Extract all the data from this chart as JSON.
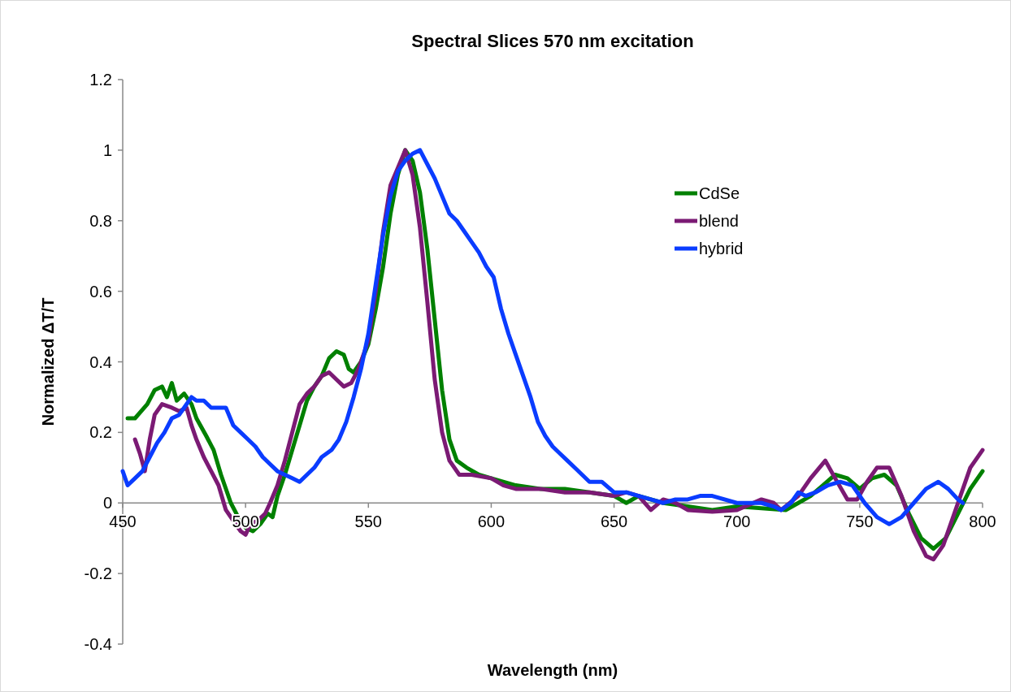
{
  "chart_data": {
    "type": "line",
    "title": "Spectral Slices 570 nm excitation",
    "xlabel": "Wavelength (nm)",
    "ylabel": "Normalized ΔT/T",
    "xlim": [
      450,
      800
    ],
    "xticks": [
      450,
      500,
      550,
      600,
      650,
      700,
      750,
      800
    ],
    "ylim": [
      -0.4,
      1.2
    ],
    "yticks": [
      -0.4,
      -0.2,
      0,
      0.2,
      0.4,
      0.6,
      0.8,
      1,
      1.2
    ],
    "grid": false,
    "legend": "right",
    "marker": "none",
    "line_style": "solid",
    "series": [
      {
        "name": "CdSe",
        "color": "#008000",
        "x": [
          452,
          455,
          460,
          463,
          466,
          468,
          470,
          472,
          475,
          478,
          480,
          484,
          487,
          490,
          494,
          497,
          500,
          503,
          506,
          509,
          511,
          513,
          516,
          519,
          522,
          525,
          528,
          531,
          534,
          537,
          540,
          542,
          544,
          547,
          550,
          553,
          556,
          559,
          562,
          565,
          568,
          571,
          574,
          577,
          580,
          583,
          586,
          590,
          595,
          600,
          610,
          620,
          630,
          640,
          650,
          655,
          660,
          670,
          680,
          690,
          700,
          710,
          720,
          725,
          730,
          735,
          740,
          745,
          750,
          755,
          760,
          765,
          770,
          775,
          780,
          785,
          790,
          795,
          800
        ],
        "values": [
          0.24,
          0.24,
          0.28,
          0.32,
          0.33,
          0.3,
          0.34,
          0.29,
          0.31,
          0.28,
          0.24,
          0.19,
          0.15,
          0.08,
          0,
          -0.04,
          -0.07,
          -0.08,
          -0.06,
          -0.03,
          -0.04,
          0.02,
          0.08,
          0.15,
          0.22,
          0.29,
          0.33,
          0.36,
          0.41,
          0.43,
          0.42,
          0.38,
          0.37,
          0.4,
          0.45,
          0.55,
          0.67,
          0.82,
          0.93,
          1,
          0.97,
          0.88,
          0.72,
          0.52,
          0.32,
          0.18,
          0.12,
          0.1,
          0.08,
          0.07,
          0.05,
          0.04,
          0.04,
          0.03,
          0.02,
          0,
          0.02,
          0,
          -0.01,
          -0.02,
          -0.01,
          -0.015,
          -0.02,
          0,
          0.02,
          0.05,
          0.08,
          0.07,
          0.04,
          0.07,
          0.08,
          0.05,
          -0.03,
          -0.1,
          -0.13,
          -0.1,
          -0.03,
          0.04,
          0.09
        ]
      },
      {
        "name": "blend",
        "color": "#7b1a74",
        "x": [
          455,
          457,
          459,
          461,
          463,
          466,
          470,
          473,
          476,
          478,
          480,
          483,
          486,
          489,
          492,
          495,
          498,
          500,
          502,
          505,
          508,
          510,
          513,
          516,
          519,
          522,
          525,
          528,
          531,
          534,
          537,
          540,
          543,
          546,
          550,
          553,
          556,
          559,
          562,
          565,
          568,
          571,
          574,
          577,
          580,
          583,
          587,
          592,
          600,
          605,
          610,
          620,
          630,
          640,
          650,
          655,
          660,
          665,
          670,
          675,
          680,
          690,
          700,
          710,
          715,
          718,
          725,
          730,
          736,
          740,
          745,
          749,
          753,
          757,
          762,
          767,
          772,
          777,
          780,
          784,
          790,
          795,
          800
        ],
        "values": [
          0.18,
          0.14,
          0.09,
          0.18,
          0.25,
          0.28,
          0.27,
          0.26,
          0.27,
          0.22,
          0.18,
          0.13,
          0.09,
          0.05,
          -0.02,
          -0.05,
          -0.08,
          -0.09,
          -0.06,
          -0.05,
          -0.03,
          0,
          0.05,
          0.12,
          0.2,
          0.28,
          0.31,
          0.33,
          0.36,
          0.37,
          0.35,
          0.33,
          0.34,
          0.38,
          0.46,
          0.6,
          0.77,
          0.9,
          0.95,
          1,
          0.93,
          0.78,
          0.57,
          0.35,
          0.2,
          0.12,
          0.08,
          0.08,
          0.07,
          0.05,
          0.04,
          0.04,
          0.03,
          0.03,
          0.02,
          0.03,
          0.02,
          -0.02,
          0.01,
          0,
          -0.02,
          -0.025,
          -0.02,
          0.01,
          0,
          -0.02,
          0.02,
          0.07,
          0.12,
          0.07,
          0.01,
          0.01,
          0.06,
          0.1,
          0.1,
          0.02,
          -0.08,
          -0.15,
          -0.16,
          -0.12,
          0,
          0.1,
          0.15
        ]
      },
      {
        "name": "hybrid",
        "color": "#0a3cff",
        "x": [
          450,
          452,
          455,
          458,
          461,
          464,
          467,
          470,
          473,
          475,
          478,
          480,
          483,
          486,
          489,
          492,
          495,
          498,
          501,
          504,
          507,
          510,
          513,
          516,
          519,
          522,
          525,
          528,
          531,
          535,
          538,
          541,
          544,
          547,
          550,
          553,
          556,
          559,
          562,
          565,
          568,
          571,
          574,
          577,
          580,
          583,
          586,
          589,
          592,
          595,
          598,
          601,
          604,
          607,
          610,
          613,
          616,
          619,
          622,
          625,
          628,
          631,
          634,
          637,
          640,
          645,
          650,
          655,
          660,
          665,
          670,
          675,
          680,
          685,
          690,
          700,
          710,
          715,
          718,
          722,
          725,
          728,
          732,
          737,
          742,
          747,
          752,
          757,
          762,
          767,
          772,
          777,
          782,
          786,
          790,
          792
        ],
        "values": [
          0.09,
          0.05,
          0.07,
          0.09,
          0.13,
          0.17,
          0.2,
          0.24,
          0.25,
          0.27,
          0.3,
          0.29,
          0.29,
          0.27,
          0.27,
          0.27,
          0.22,
          0.2,
          0.18,
          0.16,
          0.13,
          0.11,
          0.09,
          0.08,
          0.07,
          0.06,
          0.08,
          0.1,
          0.13,
          0.15,
          0.18,
          0.23,
          0.3,
          0.38,
          0.48,
          0.62,
          0.76,
          0.87,
          0.94,
          0.97,
          0.99,
          1,
          0.96,
          0.92,
          0.87,
          0.82,
          0.8,
          0.77,
          0.74,
          0.71,
          0.67,
          0.64,
          0.55,
          0.48,
          0.42,
          0.36,
          0.3,
          0.23,
          0.19,
          0.16,
          0.14,
          0.12,
          0.1,
          0.08,
          0.06,
          0.06,
          0.03,
          0.03,
          0.02,
          0.01,
          0,
          0.01,
          0.01,
          0.02,
          0.02,
          0,
          0,
          -0.01,
          -0.02,
          0,
          0.03,
          0.02,
          0.03,
          0.05,
          0.06,
          0.05,
          0,
          -0.04,
          -0.06,
          -0.04,
          0,
          0.04,
          0.06,
          0.04,
          0.01,
          0
        ]
      }
    ]
  }
}
